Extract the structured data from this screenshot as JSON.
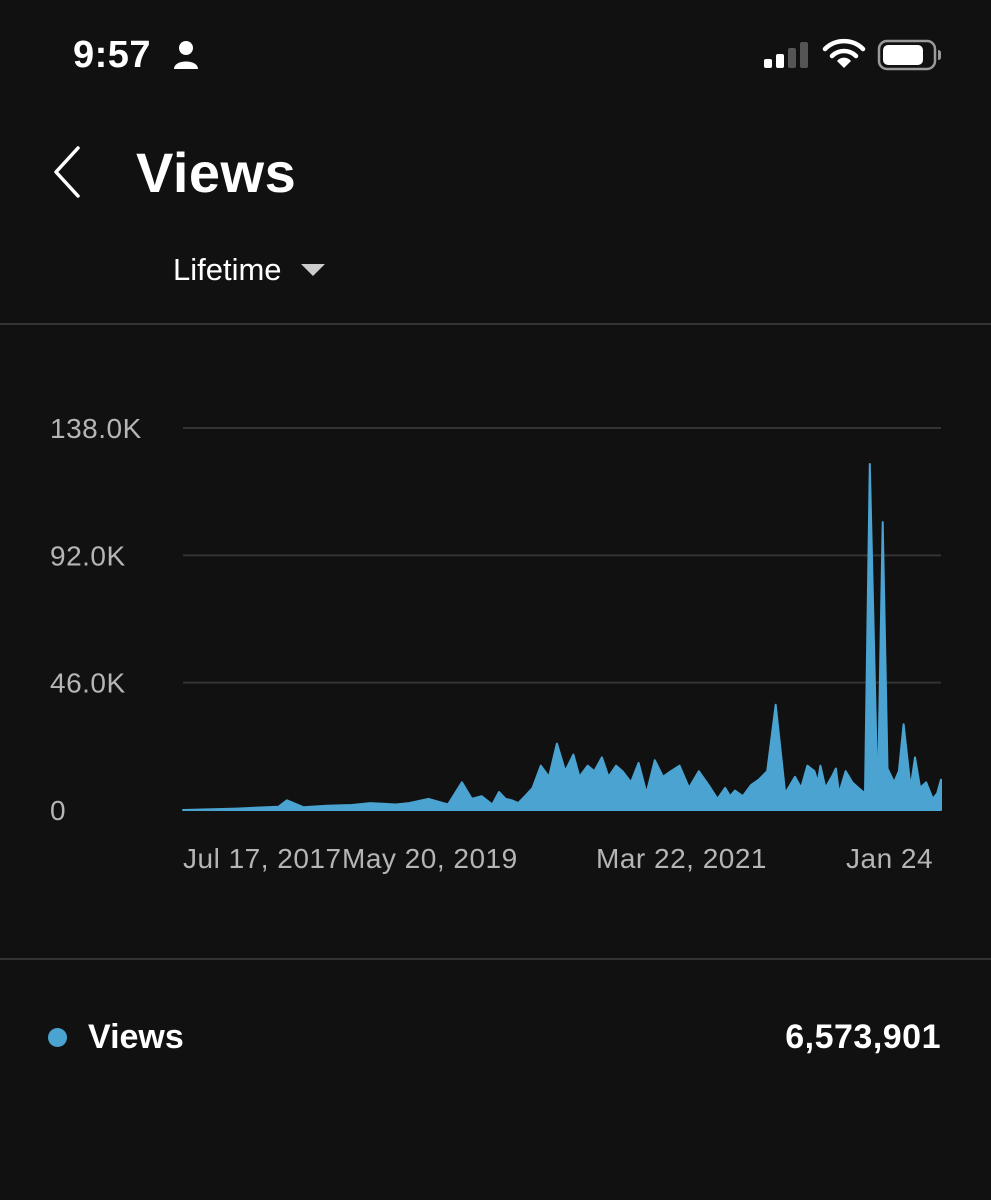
{
  "status_bar": {
    "time": "9:57",
    "icons": [
      "person-icon",
      "cellular-signal-icon",
      "wifi-icon",
      "battery-icon"
    ]
  },
  "header": {
    "back_icon": "chevron-left-icon",
    "title": "Views"
  },
  "filter": {
    "selected": "Lifetime",
    "icon": "caret-down-icon"
  },
  "colors": {
    "background": "#111111",
    "accent": "#4aa3d0",
    "gridline": "#333333",
    "tick_text": "#b5b5b5",
    "text": "#ffffff"
  },
  "chart_data": {
    "type": "area",
    "title": "",
    "xlabel": "",
    "ylabel": "",
    "x_tick_labels": [
      "Jul 17, 2017",
      "May 20, 2019",
      "Mar 22, 2021",
      "Jan 24"
    ],
    "y_tick_labels": [
      "0",
      "46.0K",
      "92.0K",
      "138.0K"
    ],
    "ylim": [
      0,
      138000
    ],
    "grid": true,
    "series": [
      {
        "name": "Views",
        "color": "#4aa3d0",
        "x": [
          "2017-07-17",
          "2018-01-01",
          "2018-05-15",
          "2018-06-10",
          "2018-08-01",
          "2018-10-15",
          "2019-01-01",
          "2019-03-01",
          "2019-05-20",
          "2019-07-01",
          "2019-09-01",
          "2019-11-01",
          "2019-12-15",
          "2020-01-15",
          "2020-02-15",
          "2020-03-20",
          "2020-04-10",
          "2020-05-01",
          "2020-05-20",
          "2020-06-10",
          "2020-07-01",
          "2020-07-25",
          "2020-08-20",
          "2020-09-15",
          "2020-10-10",
          "2020-11-05",
          "2020-12-01",
          "2020-12-20",
          "2021-01-15",
          "2021-02-05",
          "2021-03-01",
          "2021-03-22",
          "2021-04-15",
          "2021-05-05",
          "2021-06-01",
          "2021-06-25",
          "2021-07-20",
          "2021-08-15",
          "2021-09-10",
          "2021-10-05",
          "2021-11-01",
          "2021-12-01",
          "2022-01-01",
          "2022-02-01",
          "2022-03-01",
          "2022-03-25",
          "2022-04-10",
          "2022-04-25",
          "2022-05-20",
          "2022-06-15",
          "2022-07-10",
          "2022-08-05",
          "2022-09-01",
          "2022-10-01",
          "2022-11-01",
          "2022-11-20",
          "2022-12-10",
          "2023-01-01",
          "2023-01-12",
          "2023-01-20",
          "2023-02-05",
          "2023-02-25",
          "2023-03-10",
          "2023-03-20",
          "2023-04-10",
          "2023-05-01",
          "2023-05-20",
          "2023-06-10",
          "2023-06-25",
          "2023-07-20",
          "2023-08-05",
          "2023-08-20",
          "2023-09-10",
          "2023-09-25",
          "2023-10-10",
          "2023-11-01",
          "2023-11-15",
          "2023-12-01",
          "2023-12-20",
          "2024-01-10",
          "2024-01-24",
          "2024-02-05"
        ],
        "values": [
          0,
          500,
          1200,
          3500,
          1000,
          1500,
          1800,
          2500,
          2000,
          2500,
          4000,
          2000,
          10000,
          4000,
          5000,
          2000,
          6500,
          4000,
          3500,
          2500,
          5000,
          8000,
          16000,
          12000,
          24000,
          14000,
          20000,
          12000,
          16000,
          14000,
          19000,
          12000,
          16000,
          14000,
          10000,
          17000,
          6000,
          18000,
          12000,
          14000,
          16000,
          8000,
          14000,
          9000,
          4000,
          8000,
          5000,
          7000,
          5000,
          9000,
          11000,
          14000,
          38000,
          6000,
          12000,
          8000,
          16000,
          14000,
          10000,
          16000,
          8000,
          12000,
          15000,
          6000,
          14000,
          10000,
          8000,
          6000,
          125000,
          2000,
          104000,
          15000,
          10000,
          14000,
          31000,
          8000,
          19000,
          8000,
          10000,
          4000,
          6000,
          11000
        ]
      }
    ]
  },
  "legend": {
    "label": "Views",
    "total": "6,573,901"
  }
}
